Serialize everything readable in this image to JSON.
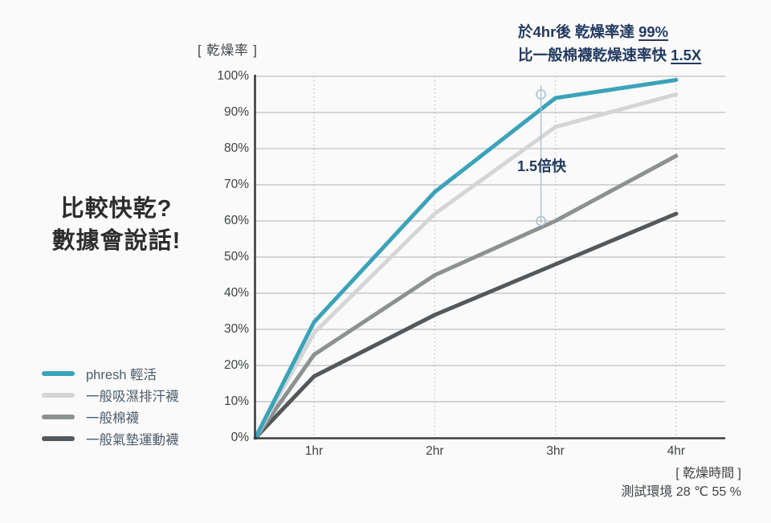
{
  "headline": {
    "line1_prefix": "於4hr後 乾燥率達 ",
    "line1_underline": "99%",
    "line2_prefix": "比一般棉襪乾燥速率快 ",
    "line2_underline": "1.5X"
  },
  "side_title": {
    "line1": "比較快乾?",
    "line2": "數據會說話!"
  },
  "y_axis_caption": "[ 乾燥率 ]",
  "footnote": {
    "x_axis_caption": "[ 乾燥時間 ]",
    "test_env": "測試環境  28 ℃ 55 %"
  },
  "colors": {
    "background": "#fafafa",
    "accent_teal": "#3ba3b9",
    "navy_text": "#233a60",
    "grid": "#c7c9ca",
    "dotted_grid": "#b9bcbe",
    "axis": "#3a3e40",
    "annotation": "#a9c2ce",
    "tick_text": "#3f4346",
    "legend_text": "#4d5c6b"
  },
  "chart_data": {
    "type": "line",
    "title": "乾燥率 vs 乾燥時間 比較圖",
    "xlabel": "[ 乾燥時間 ]",
    "ylabel": "[ 乾燥率 ]",
    "x_unit": "hr",
    "x": [
      0,
      1,
      2,
      3,
      4
    ],
    "x_tick_labels": [
      "1hr",
      "2hr",
      "3hr",
      "4hr"
    ],
    "y_ticks": [
      "0%",
      "10%",
      "20%",
      "30%",
      "40%",
      "50%",
      "60%",
      "70%",
      "80%",
      "90%",
      "100%"
    ],
    "ylim": [
      0,
      100
    ],
    "grid": true,
    "legend_position": "bottom-left",
    "series": [
      {
        "name": "phresh 輕活",
        "color": "#3ba3b9",
        "values": [
          0,
          32,
          68,
          94,
          99
        ]
      },
      {
        "name": "一般吸濕排汗襪",
        "color": "#d4d6d6",
        "values": [
          0,
          29,
          62,
          86,
          95
        ]
      },
      {
        "name": "一般棉襪",
        "color": "#8e9192",
        "values": [
          0,
          23,
          45,
          60,
          78
        ]
      },
      {
        "name": "一般氣墊運動襪",
        "color": "#54585a",
        "values": [
          0,
          17,
          34,
          48,
          62
        ]
      }
    ],
    "annotation": {
      "label": "1.5倍快",
      "x_hours": 2.88,
      "top_pct": 95,
      "bottom_pct": 60
    }
  }
}
